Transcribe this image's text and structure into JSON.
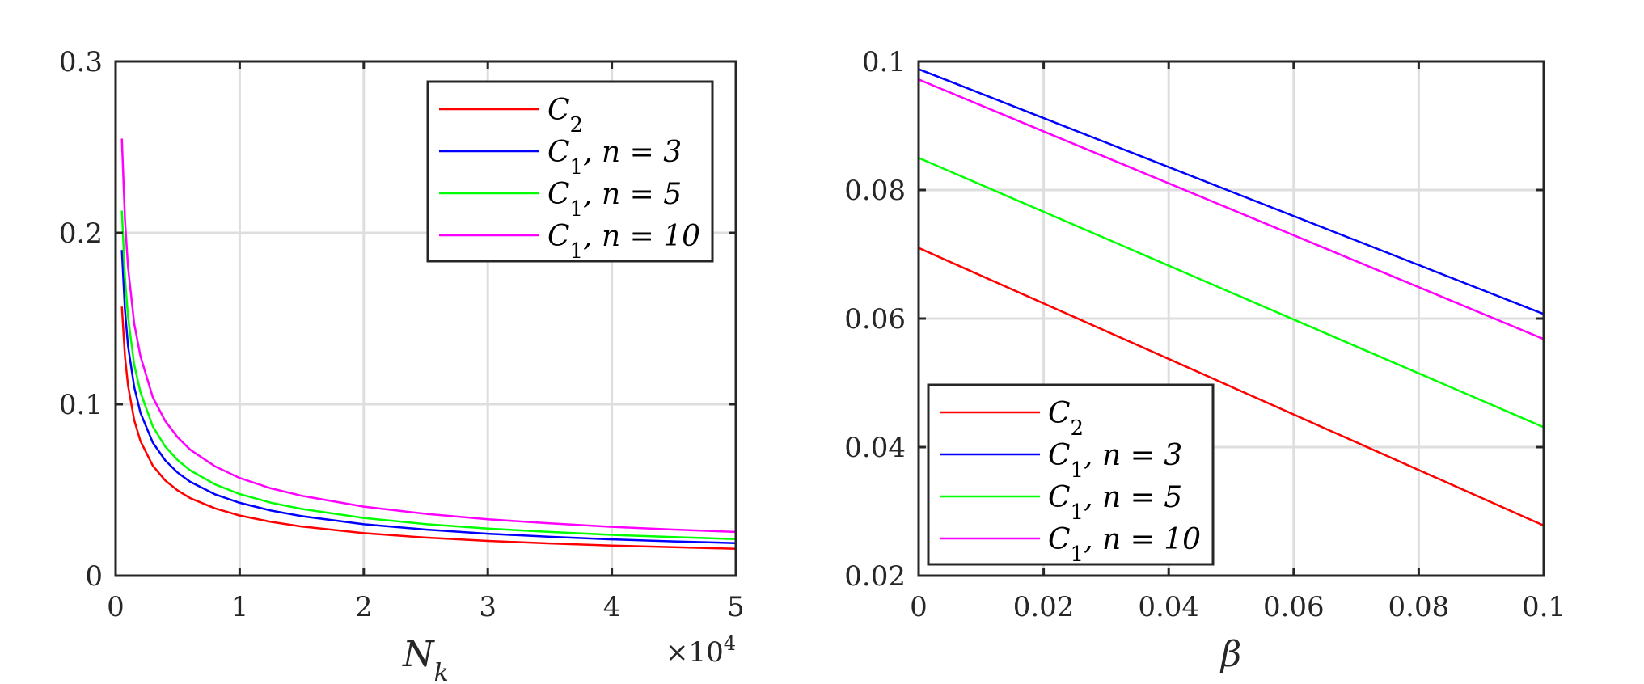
{
  "chart_data": [
    {
      "type": "line",
      "xlabel": "N_k",
      "xlabel_main": "N",
      "xlabel_sub": "k",
      "x_exponent_label": "×10",
      "x_exponent_power": "4",
      "ylabel": "",
      "xlim": [
        0,
        50000
      ],
      "ylim": [
        0,
        0.3
      ],
      "x_ticks": [
        0,
        10000,
        20000,
        30000,
        40000,
        50000
      ],
      "x_tick_labels": [
        "0",
        "1",
        "2",
        "3",
        "4",
        "5"
      ],
      "y_ticks": [
        0,
        0.1,
        0.2,
        0.3
      ],
      "y_tick_labels": [
        "0",
        "0.1",
        "0.2",
        "0.3"
      ],
      "grid": true,
      "legend_position": "top-right",
      "curve_x": [
        500,
        750,
        1000,
        1500,
        2000,
        3000,
        4000,
        5000,
        6000,
        8000,
        10000,
        12500,
        15000,
        20000,
        25000,
        30000,
        35000,
        40000,
        45000,
        50000
      ],
      "series": [
        {
          "name": "C_2",
          "legend_main": "C",
          "legend_rest": "",
          "sub": "2",
          "color": "#ff0000",
          "y_at_curve_x": [
            0.157,
            0.128,
            0.111,
            0.0907,
            0.0785,
            0.0641,
            0.0555,
            0.0497,
            0.0453,
            0.0393,
            0.0351,
            0.0314,
            0.0287,
            0.0248,
            0.0222,
            0.0203,
            0.0188,
            0.0176,
            0.0166,
            0.0157
          ]
        },
        {
          "name": "C_1, n = 3",
          "legend_main": "C",
          "legend_rest": ", n = 3",
          "sub": "1",
          "color": "#0000ff",
          "y_at_curve_x": [
            0.19,
            0.155,
            0.134,
            0.11,
            0.095,
            0.0776,
            0.0672,
            0.0601,
            0.0548,
            0.0475,
            0.0425,
            0.038,
            0.0347,
            0.03,
            0.0269,
            0.0245,
            0.0227,
            0.0212,
            0.02,
            0.019
          ]
        },
        {
          "name": "C_1, n = 5",
          "legend_main": "C",
          "legend_rest": ", n = 5",
          "sub": "1",
          "color": "#00ff00",
          "y_at_curve_x": [
            0.213,
            0.174,
            0.151,
            0.123,
            0.107,
            0.087,
            0.0753,
            0.0674,
            0.0615,
            0.0533,
            0.0476,
            0.0426,
            0.0389,
            0.0337,
            0.0301,
            0.0275,
            0.0255,
            0.0238,
            0.0225,
            0.0213
          ]
        },
        {
          "name": "C_1, n = 10",
          "legend_main": "C",
          "legend_rest": ", n = 10",
          "sub": "1",
          "color": "#ff00ff",
          "y_at_curve_x": [
            0.255,
            0.208,
            0.18,
            0.147,
            0.128,
            0.104,
            0.0902,
            0.0807,
            0.0736,
            0.0638,
            0.057,
            0.051,
            0.0466,
            0.0403,
            0.0361,
            0.0329,
            0.0305,
            0.0285,
            0.0269,
            0.0255
          ]
        }
      ]
    },
    {
      "type": "line",
      "xlabel": "β",
      "ylabel": "",
      "xlim": [
        0,
        0.1
      ],
      "ylim": [
        0.02,
        0.1
      ],
      "x_ticks": [
        0,
        0.02,
        0.04,
        0.06,
        0.08,
        0.1
      ],
      "x_tick_labels": [
        "0",
        "0.02",
        "0.04",
        "0.06",
        "0.08",
        "0.1"
      ],
      "y_ticks": [
        0.02,
        0.04,
        0.06,
        0.08,
        0.1
      ],
      "y_tick_labels": [
        "0.02",
        "0.04",
        "0.06",
        "0.08",
        "0.1"
      ],
      "grid": true,
      "legend_position": "bottom-left",
      "series": [
        {
          "name": "C_2",
          "legend_main": "C",
          "legend_rest": "",
          "sub": "2",
          "color": "#ff0000",
          "x": [
            0,
            0.1
          ],
          "y": [
            0.071,
            0.0278
          ]
        },
        {
          "name": "C_1, n = 3",
          "legend_main": "C",
          "legend_rest": ", n = 3",
          "sub": "1",
          "color": "#0000ff",
          "x": [
            0,
            0.1
          ],
          "y": [
            0.0988,
            0.0607
          ]
        },
        {
          "name": "C_1, n = 5",
          "legend_main": "C",
          "legend_rest": ", n = 5",
          "sub": "1",
          "color": "#00ff00",
          "x": [
            0,
            0.1
          ],
          "y": [
            0.085,
            0.0431
          ]
        },
        {
          "name": "C_1, n = 10",
          "legend_main": "C",
          "legend_rest": ", n = 10",
          "sub": "1",
          "color": "#ff00ff",
          "x": [
            0,
            0.1
          ],
          "y": [
            0.0972,
            0.0568
          ]
        }
      ]
    }
  ]
}
